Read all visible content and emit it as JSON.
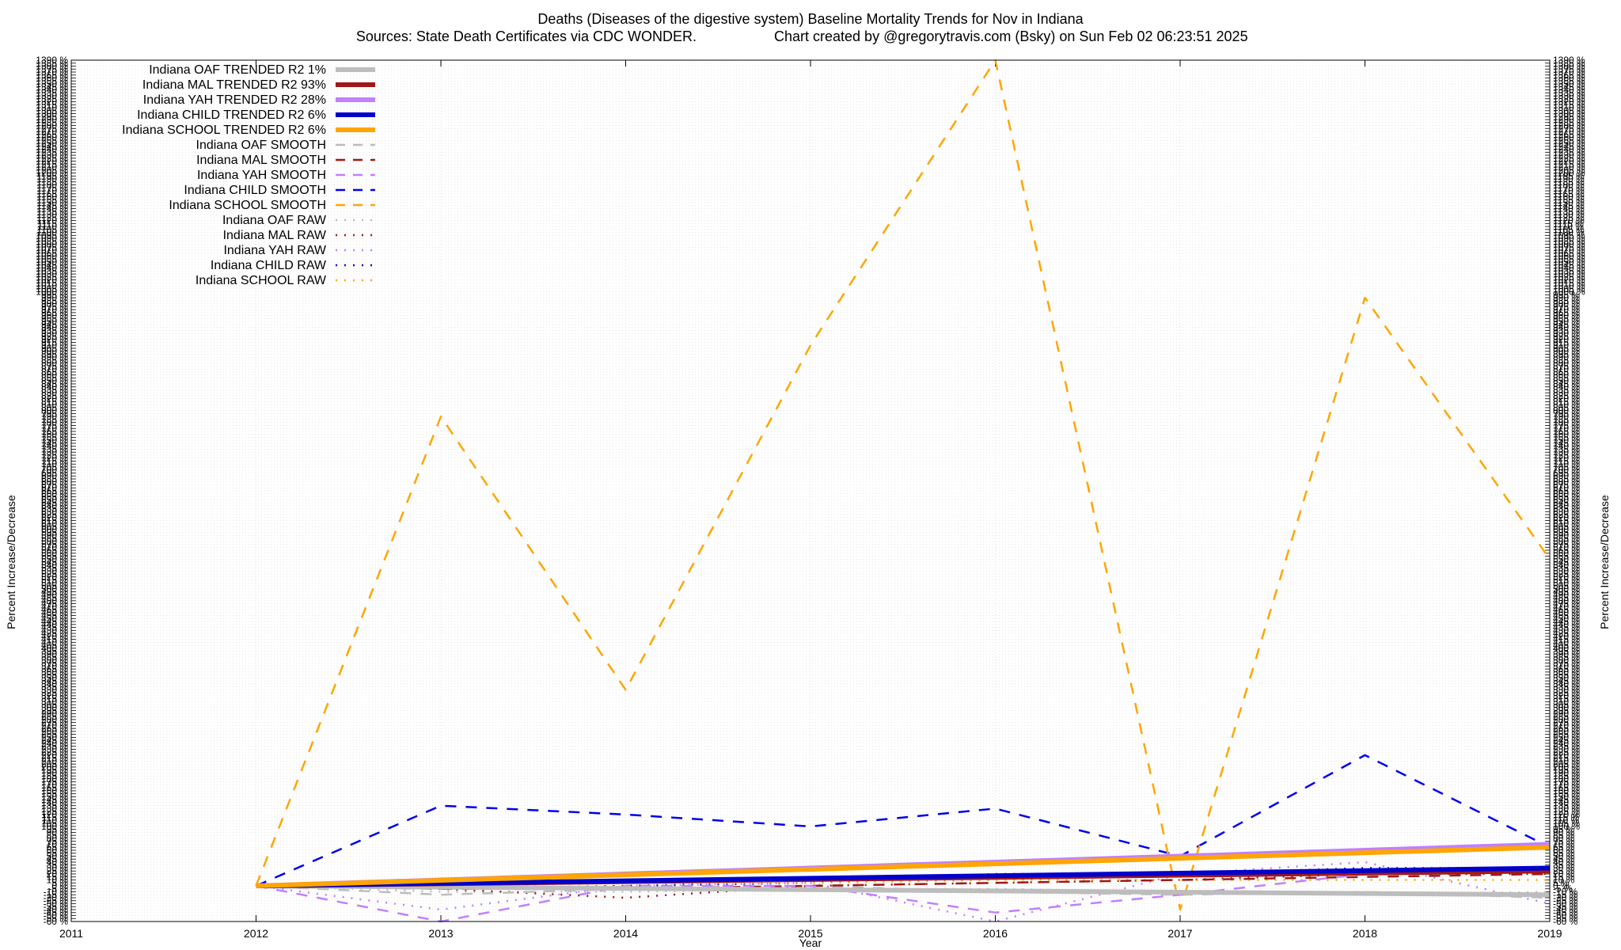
{
  "chart_data": {
    "type": "line",
    "title": "Deaths (Diseases of the digestive system)  Baseline Mortality Trends for Nov in Indiana",
    "subtitle_left": "Sources: State Death Certificates via CDC WONDER.",
    "subtitle_right": "Chart created by @gregorytravis.com (Bsky) on Sun Feb 02 06:23:51 2025",
    "xlabel": "Year",
    "ylabel": "Percent Increase/Decrease",
    "xlim": [
      2011,
      2019
    ],
    "ylim": [
      -60,
      1390
    ],
    "x_ticks": [
      "2011",
      "2012",
      "2013",
      "2014",
      "2015",
      "2016",
      "2017",
      "2018",
      "2019"
    ],
    "y_tick_step": 5,
    "y_tick_suffix": " %",
    "grid": true,
    "legend_position": "top-left",
    "series": [
      {
        "name": "Indiana OAF TRENDED R2   1%",
        "style": "trend",
        "color": "#bdbdbd",
        "x": [
          2012,
          2019
        ],
        "y": [
          0,
          -15
        ]
      },
      {
        "name": "Indiana MAL TRENDED R2  93%",
        "style": "trend",
        "color": "#a01818",
        "x": [
          2012,
          2019
        ],
        "y": [
          0,
          25
        ]
      },
      {
        "name": "Indiana YAH TRENDED R2  28%",
        "style": "trend",
        "color": "#c080ff",
        "x": [
          2012,
          2019
        ],
        "y": [
          0,
          70
        ]
      },
      {
        "name": "Indiana CHILD TRENDED R2   6%",
        "style": "trend",
        "color": "#0000cc",
        "x": [
          2012,
          2019
        ],
        "y": [
          0,
          30
        ]
      },
      {
        "name": "Indiana SCHOOL TRENDED R2   6%",
        "style": "trend",
        "color": "#ffa500",
        "x": [
          2012,
          2019
        ],
        "y": [
          0,
          65
        ]
      },
      {
        "name": "Indiana OAF SMOOTH",
        "style": "smooth",
        "color": "#bdbdbd",
        "x": [
          2012,
          2013,
          2014,
          2015,
          2016,
          2017,
          2018,
          2019
        ],
        "y": [
          0,
          -15,
          -5,
          0,
          -10,
          -15,
          -10,
          -20
        ]
      },
      {
        "name": "Indiana MAL SMOOTH",
        "style": "smooth",
        "color": "#a01818",
        "x": [
          2012,
          2013,
          2014,
          2015,
          2016,
          2017,
          2018,
          2019
        ],
        "y": [
          0,
          -5,
          -5,
          0,
          5,
          10,
          15,
          20
        ]
      },
      {
        "name": "Indiana YAH SMOOTH",
        "style": "smooth",
        "color": "#c080ff",
        "x": [
          2012,
          2013,
          2014,
          2015,
          2016,
          2017,
          2018,
          2019
        ],
        "y": [
          0,
          -60,
          0,
          0,
          -45,
          -15,
          20,
          25
        ]
      },
      {
        "name": "Indiana CHILD SMOOTH",
        "style": "smooth",
        "color": "#0000ee",
        "x": [
          2012,
          2013,
          2014,
          2015,
          2016,
          2017,
          2018,
          2019
        ],
        "y": [
          0,
          135,
          120,
          100,
          130,
          50,
          220,
          65
        ]
      },
      {
        "name": "Indiana SCHOOL SMOOTH",
        "style": "smooth",
        "color": "#ffa500",
        "x": [
          2012,
          2013,
          2014,
          2015,
          2016,
          2017,
          2018,
          2019
        ],
        "y": [
          0,
          790,
          330,
          910,
          1390,
          -40,
          990,
          550
        ]
      },
      {
        "name": "Indiana OAF RAW",
        "style": "raw",
        "color": "#bdbdbd",
        "x": [
          2012,
          2013,
          2014,
          2015,
          2016,
          2017,
          2018,
          2019
        ],
        "y": [
          0,
          -10,
          -10,
          -5,
          -5,
          -10,
          -15,
          -10
        ]
      },
      {
        "name": "Indiana MAL RAW",
        "style": "raw",
        "color": "#a01818",
        "x": [
          2012,
          2013,
          2014,
          2015,
          2016,
          2017,
          2018,
          2019
        ],
        "y": [
          0,
          -5,
          -20,
          0,
          5,
          10,
          20,
          20
        ]
      },
      {
        "name": "Indiana YAH RAW",
        "style": "raw",
        "color": "#c080ff",
        "x": [
          2012,
          2013,
          2014,
          2015,
          2016,
          2017,
          2018,
          2019
        ],
        "y": [
          0,
          -40,
          0,
          5,
          -60,
          20,
          40,
          -30
        ]
      },
      {
        "name": "Indiana CHILD RAW",
        "style": "raw",
        "color": "#0000ee",
        "x": [
          2012,
          2013,
          2014,
          2015,
          2016,
          2017,
          2018,
          2019
        ],
        "y": [
          0,
          -5,
          0,
          5,
          20,
          20,
          30,
          30
        ]
      },
      {
        "name": "Indiana SCHOOL RAW",
        "style": "raw",
        "color": "#ffa500",
        "x": [
          2012,
          2013,
          2014,
          2015,
          2016,
          2017,
          2018,
          2019
        ],
        "y": [
          0,
          0,
          5,
          5,
          10,
          10,
          10,
          10
        ]
      }
    ]
  }
}
